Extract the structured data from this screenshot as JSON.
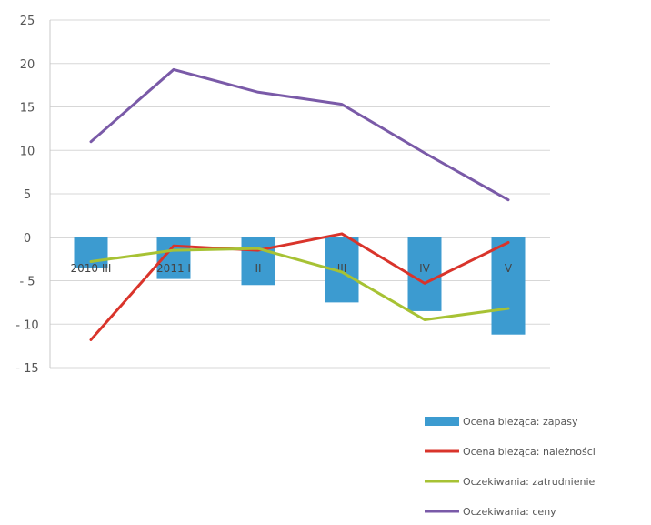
{
  "chart_data": {
    "type": "bar",
    "categories": [
      "2010 III",
      "2011 I",
      "II",
      "III",
      "IV",
      "V"
    ],
    "ylim": [
      -15,
      25
    ],
    "yticks": [
      25,
      20,
      15,
      10,
      5,
      0,
      -5,
      -10,
      -15
    ],
    "grid": true,
    "legend_position": "bottom-right",
    "series": [
      {
        "name": "Ocena bieżąca: zapasy",
        "type": "bar",
        "color": "#3c9bd0",
        "values": [
          -3.5,
          -4.8,
          -5.5,
          -7.5,
          -8.5,
          -11.2
        ]
      },
      {
        "name": "Ocena bieżąca: należności",
        "type": "line",
        "color": "#d9342b",
        "values": [
          -11.8,
          -1.0,
          -1.5,
          0.4,
          -5.3,
          -0.6
        ]
      },
      {
        "name": "Oczekiwania: zatrudnienie",
        "type": "line",
        "color": "#a7c234",
        "values": [
          -2.8,
          -1.5,
          -1.3,
          -4.0,
          -9.5,
          -8.2
        ]
      },
      {
        "name": "Oczekiwania: ceny",
        "type": "line",
        "color": "#7a5aa8",
        "values": [
          11.0,
          19.3,
          16.7,
          15.3,
          9.7,
          4.3
        ]
      }
    ]
  }
}
